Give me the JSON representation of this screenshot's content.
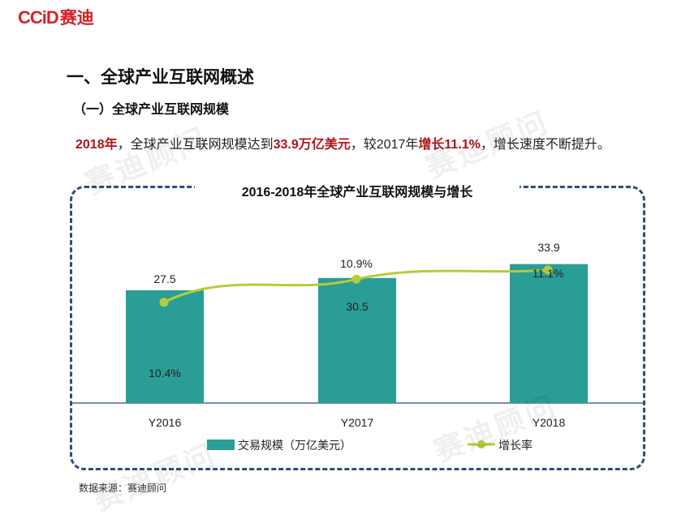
{
  "logo": {
    "en": "CCiD",
    "cn": "赛迪"
  },
  "heading": "一、全球产业互联网概述",
  "subheading": "（一）全球产业互联网规模",
  "paragraph": {
    "p1": "2018年",
    "p2": "，全球产业互联网规模达到",
    "p3": "33.9万亿美元",
    "p4": "，较2017年",
    "p5": "增长11.1%",
    "p6": "，增长速度不断提升。"
  },
  "watermark": "赛迪顾问",
  "source": "数据来源：赛迪顾问",
  "colors": {
    "bar": "#2a9d96",
    "line": "#b5cc3a",
    "frame": "#2f4f73",
    "highlight": "#b0141b"
  },
  "chart_data": {
    "type": "bar",
    "title": "2016-2018年全球产业互联网规模与增长",
    "categories": [
      "Y2016",
      "Y2017",
      "Y2018"
    ],
    "series": [
      {
        "name": "交易规模（万亿美元）",
        "type": "bar",
        "values": [
          27.5,
          30.5,
          33.9
        ],
        "labels": [
          "27.5",
          "30.5",
          "33.9"
        ]
      },
      {
        "name": "增长率",
        "type": "line",
        "values": [
          10.4,
          10.9,
          11.1
        ],
        "labels": [
          "10.4%",
          "10.9%",
          "11.1%"
        ]
      }
    ],
    "ylim": [
      0,
      35
    ],
    "y2lim": [
      8.0,
      11.5
    ],
    "legend": "bottom",
    "grid": false
  }
}
